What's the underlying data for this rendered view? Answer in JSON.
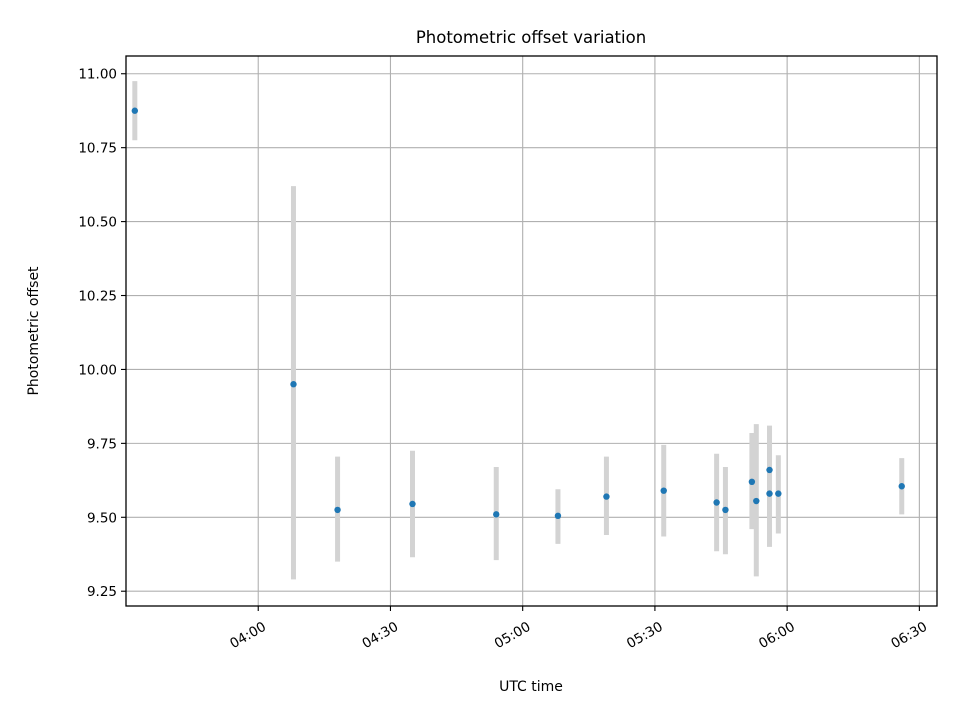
{
  "chart_data": {
    "type": "scatter",
    "title": "Photometric offset variation",
    "xlabel": "UTC time",
    "ylabel": "Photometric offset",
    "x_axis_kind": "time",
    "xlim": [
      "03:30",
      "06:34"
    ],
    "ylim": [
      9.2,
      11.06
    ],
    "xticks": [
      "04:00",
      "04:30",
      "05:00",
      "05:30",
      "06:00",
      "06:30"
    ],
    "yticks": [
      "9.25",
      "9.50",
      "9.75",
      "10.00",
      "10.25",
      "10.50",
      "10.75",
      "11.00"
    ],
    "grid": true,
    "colors": {
      "marker": "#1f77b4",
      "errorbar": "#d3d3d3",
      "grid": "#b0b0b0"
    },
    "points": [
      {
        "x": "03:32",
        "y": 10.875,
        "yerr_low": 10.775,
        "yerr_high": 10.975
      },
      {
        "x": "04:08",
        "y": 9.95,
        "yerr_low": 9.29,
        "yerr_high": 10.62
      },
      {
        "x": "04:18",
        "y": 9.525,
        "yerr_low": 9.35,
        "yerr_high": 9.705
      },
      {
        "x": "04:35",
        "y": 9.545,
        "yerr_low": 9.365,
        "yerr_high": 9.725
      },
      {
        "x": "04:54",
        "y": 9.51,
        "yerr_low": 9.355,
        "yerr_high": 9.67
      },
      {
        "x": "05:08",
        "y": 9.505,
        "yerr_low": 9.41,
        "yerr_high": 9.595
      },
      {
        "x": "05:19",
        "y": 9.57,
        "yerr_low": 9.44,
        "yerr_high": 9.705
      },
      {
        "x": "05:32",
        "y": 9.59,
        "yerr_low": 9.435,
        "yerr_high": 9.745
      },
      {
        "x": "05:44",
        "y": 9.55,
        "yerr_low": 9.385,
        "yerr_high": 9.715
      },
      {
        "x": "05:46",
        "y": 9.525,
        "yerr_low": 9.375,
        "yerr_high": 9.67
      },
      {
        "x": "05:52",
        "y": 9.62,
        "yerr_low": 9.46,
        "yerr_high": 9.785
      },
      {
        "x": "05:53",
        "y": 9.555,
        "yerr_low": 9.3,
        "yerr_high": 9.815
      },
      {
        "x": "05:56",
        "y": 9.58,
        "yerr_low": 9.4,
        "yerr_high": 9.755
      },
      {
        "x": "05:56",
        "y": 9.66,
        "yerr_low": 9.5,
        "yerr_high": 9.81
      },
      {
        "x": "05:58",
        "y": 9.58,
        "yerr_low": 9.445,
        "yerr_high": 9.71
      },
      {
        "x": "06:26",
        "y": 9.605,
        "yerr_low": 9.51,
        "yerr_high": 9.7
      }
    ]
  }
}
